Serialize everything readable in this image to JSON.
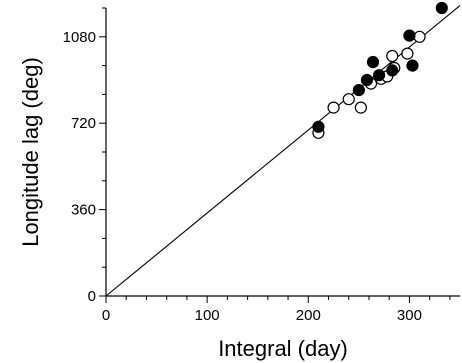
{
  "chart_data": {
    "type": "scatter",
    "xlabel": "Integral (day)",
    "ylabel": "Longitude lag (deg)",
    "xlim": [
      0,
      350
    ],
    "ylim": [
      0,
      1200
    ],
    "x_ticks": [
      0,
      100,
      200,
      300
    ],
    "y_ticks": [
      0,
      360,
      720,
      1080
    ],
    "x_minor_step": 20,
    "y_minor_step": 120,
    "grid": false,
    "legend": "none",
    "fit_line": {
      "x": [
        0,
        350
      ],
      "y": [
        0,
        1210
      ]
    },
    "series": [
      {
        "marker": "filled-circle",
        "color": "#000000",
        "points": [
          [
            210,
            705
          ],
          [
            250,
            858
          ],
          [
            258,
            900
          ],
          [
            264,
            975
          ],
          [
            270,
            920
          ],
          [
            283,
            940
          ],
          [
            300,
            1085
          ],
          [
            303,
            960
          ],
          [
            332,
            1200
          ]
        ]
      },
      {
        "marker": "open-circle",
        "color": "#000000",
        "points": [
          [
            210,
            680
          ],
          [
            225,
            785
          ],
          [
            240,
            820
          ],
          [
            252,
            785
          ],
          [
            262,
            885
          ],
          [
            272,
            905
          ],
          [
            278,
            915
          ],
          [
            283,
            1000
          ],
          [
            285,
            950
          ],
          [
            298,
            1010
          ],
          [
            310,
            1080
          ]
        ]
      }
    ]
  }
}
